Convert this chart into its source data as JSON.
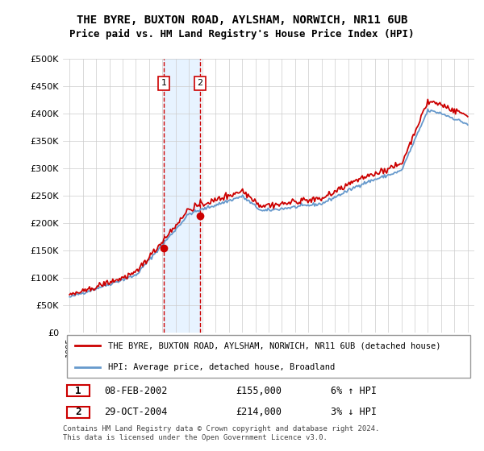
{
  "title_line1": "THE BYRE, BUXTON ROAD, AYLSHAM, NORWICH, NR11 6UB",
  "title_line2": "Price paid vs. HM Land Registry's House Price Index (HPI)",
  "ylabel_ticks": [
    "£0",
    "£50K",
    "£100K",
    "£150K",
    "£200K",
    "£250K",
    "£300K",
    "£350K",
    "£400K",
    "£450K",
    "£500K"
  ],
  "ytick_values": [
    0,
    50000,
    100000,
    150000,
    200000,
    250000,
    300000,
    350000,
    400000,
    450000,
    500000
  ],
  "xlim": [
    1994.5,
    2025.5
  ],
  "ylim": [
    0,
    500000
  ],
  "sale1_x": 2002.1,
  "sale1_y": 155000,
  "sale2_x": 2004.83,
  "sale2_y": 214000,
  "sale1_label": "1",
  "sale2_label": "2",
  "sale1_date": "08-FEB-2002",
  "sale1_price": "£155,000",
  "sale1_hpi": "6% ↑ HPI",
  "sale2_date": "29-OCT-2004",
  "sale2_price": "£214,000",
  "sale2_hpi": "3% ↓ HPI",
  "legend_line1": "THE BYRE, BUXTON ROAD, AYLSHAM, NORWICH, NR11 6UB (detached house)",
  "legend_line2": "HPI: Average price, detached house, Broadland",
  "footer": "Contains HM Land Registry data © Crown copyright and database right 2024.\nThis data is licensed under the Open Government Licence v3.0.",
  "hpi_color": "#6699cc",
  "sale_color": "#cc0000",
  "shade_color": "#ddeeff",
  "grid_color": "#cccccc",
  "background_color": "#ffffff"
}
